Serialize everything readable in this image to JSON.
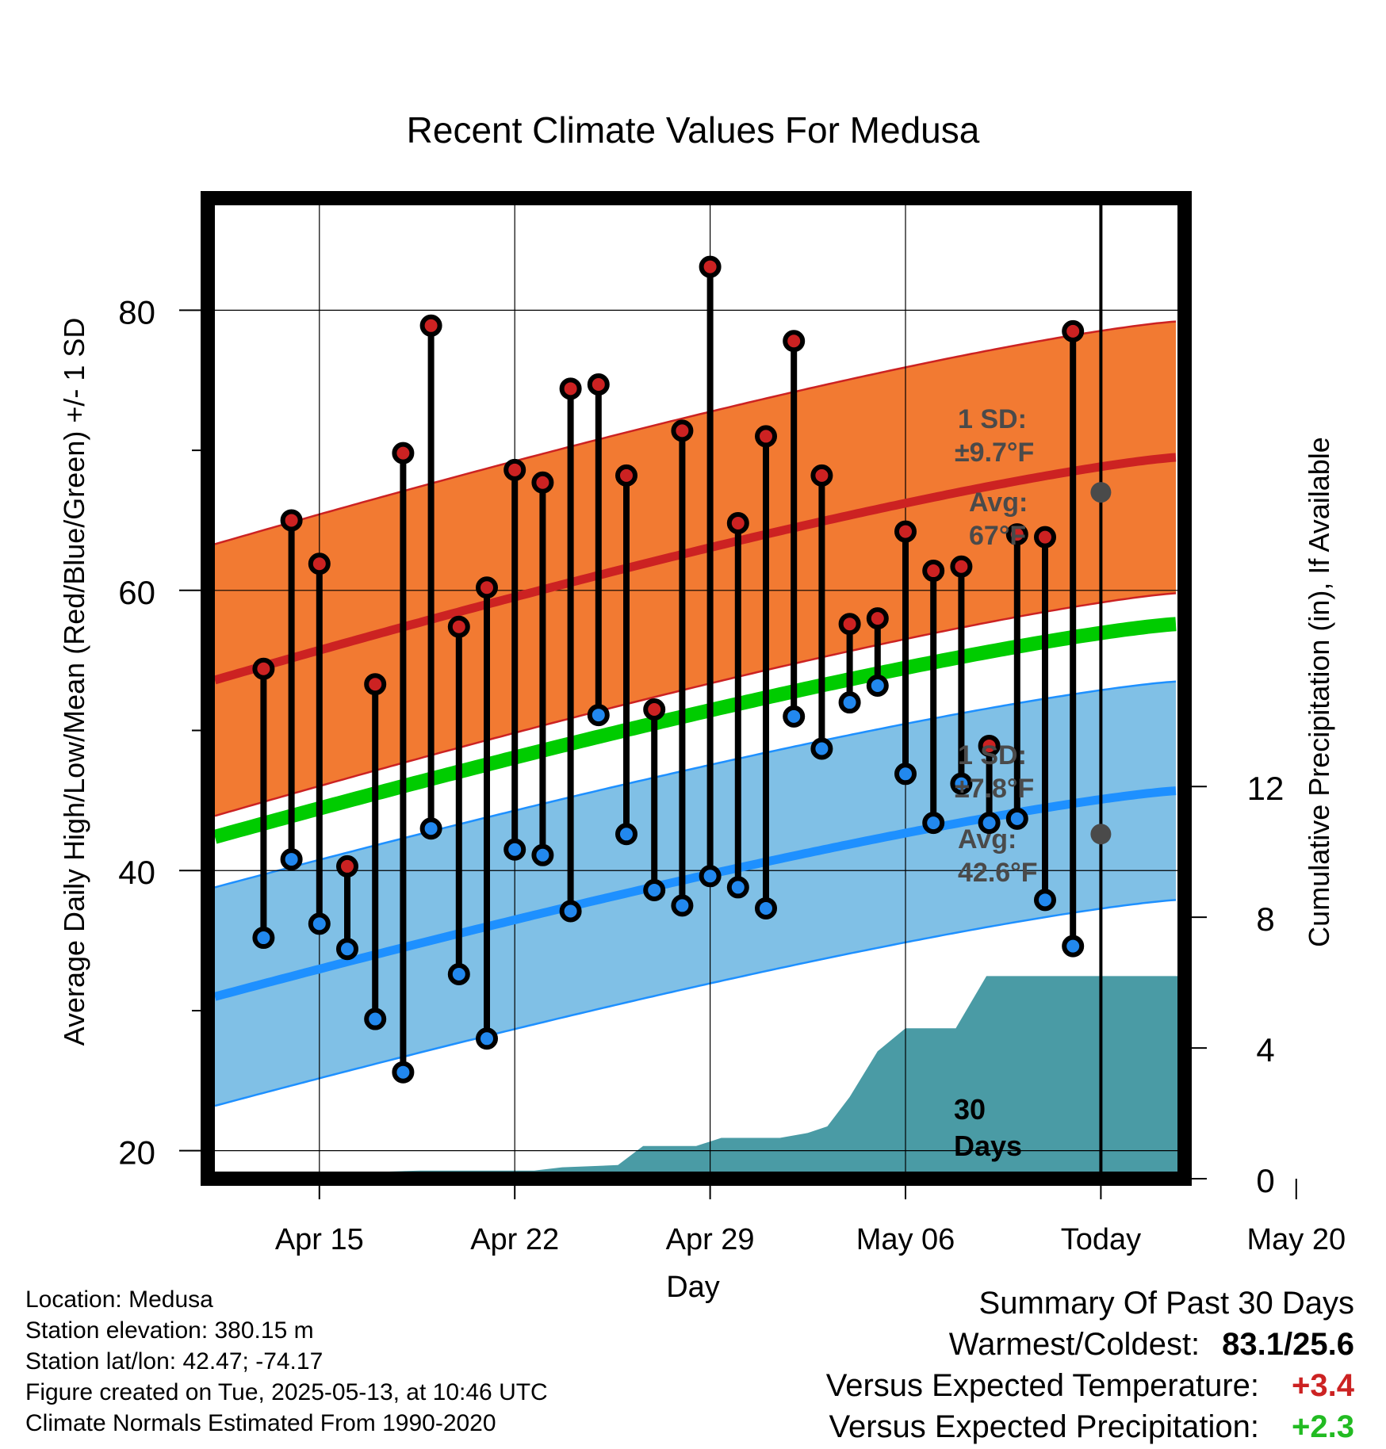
{
  "chart_data": {
    "type": "line",
    "title": "Recent Climate Values For Medusa",
    "xlabel": "Day",
    "ylabel": "Average Daily High/Low/Mean (Red/Blue/Green) +/- 1 SD",
    "y2label": "Cumulative Precipitation (in), If Available",
    "ylim": [
      18,
      88
    ],
    "y2lim": [
      0,
      30
    ],
    "x_day_range": [
      11,
      46
    ],
    "x_ticks": [
      {
        "day": 15,
        "label": "Apr 15"
      },
      {
        "day": 22,
        "label": "Apr 22"
      },
      {
        "day": 29,
        "label": "Apr 29"
      },
      {
        "day": 36,
        "label": "May 06"
      },
      {
        "day": 43,
        "label": "Today"
      },
      {
        "day": 50,
        "label": "May 20"
      }
    ],
    "y_ticks": [
      20,
      40,
      60,
      80
    ],
    "y_minor_ticks": [
      30,
      50,
      70
    ],
    "y2_ticks": [
      0,
      4,
      8,
      12
    ],
    "grid": true,
    "today_day": 43,
    "today_label": "30 Days",
    "normal_high": {
      "start": 53.6,
      "end": 69.5,
      "sd_label": "1 SD:",
      "sd_value": "±9.7°F",
      "avg_label": "Avg:",
      "avg_value": "67°F",
      "sd": 9.7,
      "today_avg": 67
    },
    "normal_low": {
      "start": 31.0,
      "end": 45.7,
      "sd_label": "1 SD:",
      "sd_value": "±7.8°F",
      "avg_label": "Avg:",
      "avg_value": "42.6°F",
      "sd": 7.8,
      "today_avg": 42.6
    },
    "normal_mean": {
      "start": 42.4,
      "end": 57.6
    },
    "daily": [
      {
        "day": 13,
        "high": 54.4,
        "low": 35.2
      },
      {
        "day": 14,
        "high": 65.0,
        "low": 40.8
      },
      {
        "day": 15,
        "high": 61.9,
        "low": 36.2
      },
      {
        "day": 16,
        "high": 40.3,
        "low": 34.4
      },
      {
        "day": 17,
        "high": 53.3,
        "low": 29.4
      },
      {
        "day": 18,
        "high": 69.8,
        "low": 25.6
      },
      {
        "day": 19,
        "high": 78.9,
        "low": 43.0
      },
      {
        "day": 20,
        "high": 57.4,
        "low": 32.6
      },
      {
        "day": 21,
        "high": 60.2,
        "low": 28.0
      },
      {
        "day": 22,
        "high": 68.6,
        "low": 41.5
      },
      {
        "day": 23,
        "high": 67.7,
        "low": 41.1
      },
      {
        "day": 24,
        "high": 74.4,
        "low": 37.1
      },
      {
        "day": 25,
        "high": 74.7,
        "low": 51.1
      },
      {
        "day": 26,
        "high": 68.2,
        "low": 42.6
      },
      {
        "day": 27,
        "high": 51.5,
        "low": 38.6
      },
      {
        "day": 28,
        "high": 71.4,
        "low": 37.5
      },
      {
        "day": 29,
        "high": 83.1,
        "low": 39.6
      },
      {
        "day": 30,
        "high": 64.8,
        "low": 38.8
      },
      {
        "day": 31,
        "high": 71.0,
        "low": 37.3
      },
      {
        "day": 32,
        "high": 77.8,
        "low": 51.0
      },
      {
        "day": 33,
        "high": 68.2,
        "low": 48.7
      },
      {
        "day": 34,
        "high": 57.6,
        "low": 52.0
      },
      {
        "day": 35,
        "high": 58.0,
        "low": 53.2
      },
      {
        "day": 36,
        "high": 64.2,
        "low": 46.9
      },
      {
        "day": 37,
        "high": 61.4,
        "low": 43.4
      },
      {
        "day": 38,
        "high": 61.7,
        "low": 46.2
      },
      {
        "day": 39,
        "high": 48.9,
        "low": 43.4
      },
      {
        "day": 40,
        "high": 64.0,
        "low": 43.7
      },
      {
        "day": 41,
        "high": 63.8,
        "low": 37.9
      },
      {
        "day": 42,
        "high": 78.5,
        "low": 34.6
      }
    ],
    "precip_cumulative": [
      {
        "day": 11,
        "value": 0
      },
      {
        "day": 17.5,
        "value": 0
      },
      {
        "day": 18.6,
        "value": 0.25
      },
      {
        "day": 22.7,
        "value": 0.25
      },
      {
        "day": 23.7,
        "value": 0.35
      },
      {
        "day": 24.7,
        "value": 0.38
      },
      {
        "day": 25.7,
        "value": 0.42
      },
      {
        "day": 26.6,
        "value": 1.0
      },
      {
        "day": 28.5,
        "value": 1.0
      },
      {
        "day": 29.4,
        "value": 1.25
      },
      {
        "day": 31.5,
        "value": 1.25
      },
      {
        "day": 32.5,
        "value": 1.4
      },
      {
        "day": 33.2,
        "value": 1.6
      },
      {
        "day": 34.0,
        "value": 2.5
      },
      {
        "day": 35.0,
        "value": 3.9
      },
      {
        "day": 36.0,
        "value": 4.6
      },
      {
        "day": 37.8,
        "value": 4.6
      },
      {
        "day": 38.9,
        "value": 6.2
      },
      {
        "day": 46,
        "value": 6.2
      }
    ]
  },
  "footer": {
    "location": "Location: Medusa",
    "elevation": "Station elevation: 380.15 m",
    "latlon": "Station lat/lon: 42.47; -74.17",
    "created": "Figure created on Tue, 2025-05-13, at 10:46 UTC",
    "normals": "Climate Normals Estimated From 1990-2020"
  },
  "summary": {
    "heading": "Summary Of Past 30 Days",
    "warm_cold_label": "Warmest/Coldest:",
    "warm_cold_value": "83.1/25.6",
    "temp_label": "Versus Expected Temperature:",
    "temp_value": "+3.4",
    "precip_label": "Versus Expected Precipitation:",
    "precip_value": "+2.3"
  },
  "colors": {
    "high_band": "#f27a32",
    "high_line": "#cc2222",
    "low_band": "#80c0e6",
    "low_line": "#1e90ff",
    "mean_line": "#00cc00",
    "precip": "#4a9ba5",
    "high_dot": "#cc2222",
    "low_dot": "#2288ee",
    "annotation": "#4a4a4a"
  }
}
